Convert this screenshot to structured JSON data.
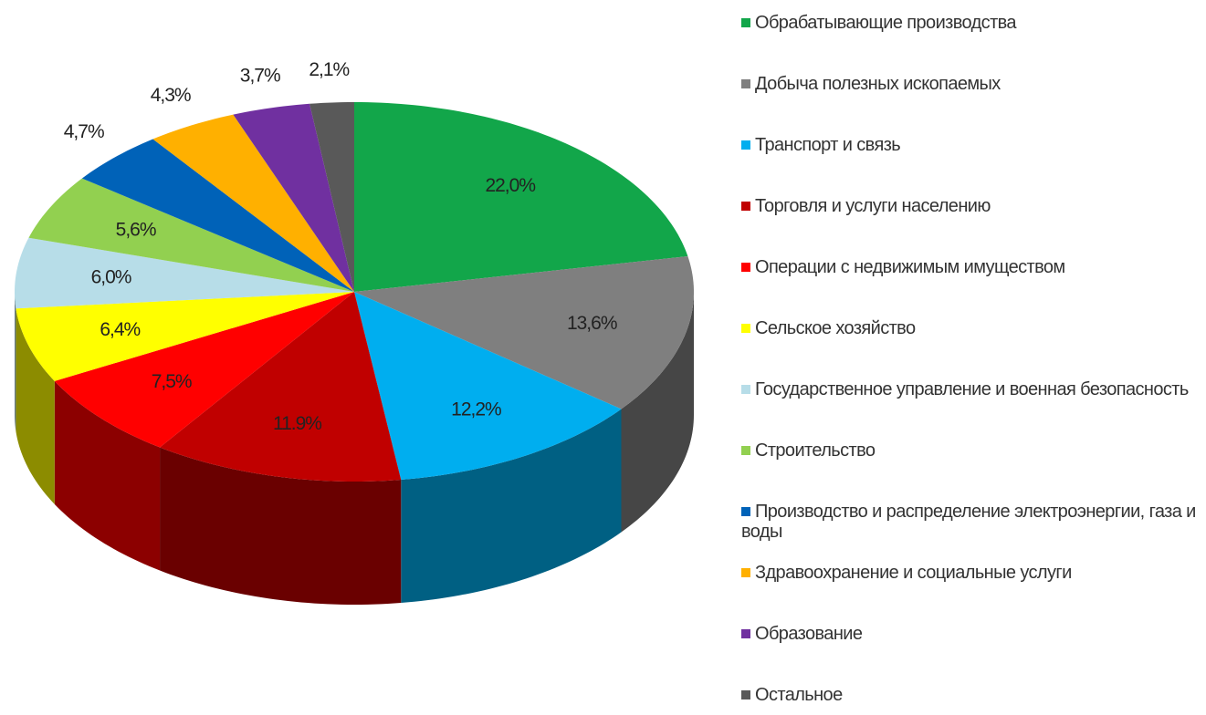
{
  "chart_data": {
    "type": "pie",
    "categories": [
      "Обрабатывающие производства",
      "Добыча полезных ископаемых",
      "Транспорт и связь",
      "Торговля и услуги населению",
      "Операции с недвижимым имуществом",
      "Сельское хозяйство",
      "Государственное управление и военная безопасность",
      "Строительство",
      "Производство и распределение электроэнергии, газа и воды",
      "Здравоохранение и социальные услуги",
      "Образование",
      "Остальное"
    ],
    "values": [
      22.0,
      13.6,
      12.2,
      11.9,
      7.5,
      6.4,
      6.0,
      5.6,
      4.7,
      4.3,
      3.7,
      2.1
    ],
    "value_labels": [
      "22,0%",
      "13,6%",
      "12,2%",
      "11.9%",
      "7,5%",
      "6,4%",
      "6,0%",
      "5,6%",
      "4,7%",
      "4,3%",
      "3,7%",
      "2,1%"
    ],
    "colors": [
      "#12a64a",
      "#7f7f7f",
      "#00aeef",
      "#c00000",
      "#ff0000",
      "#ffff00",
      "#b7dde8",
      "#92d050",
      "#0062b8",
      "#ffb000",
      "#7030a0",
      "#595959"
    ]
  }
}
